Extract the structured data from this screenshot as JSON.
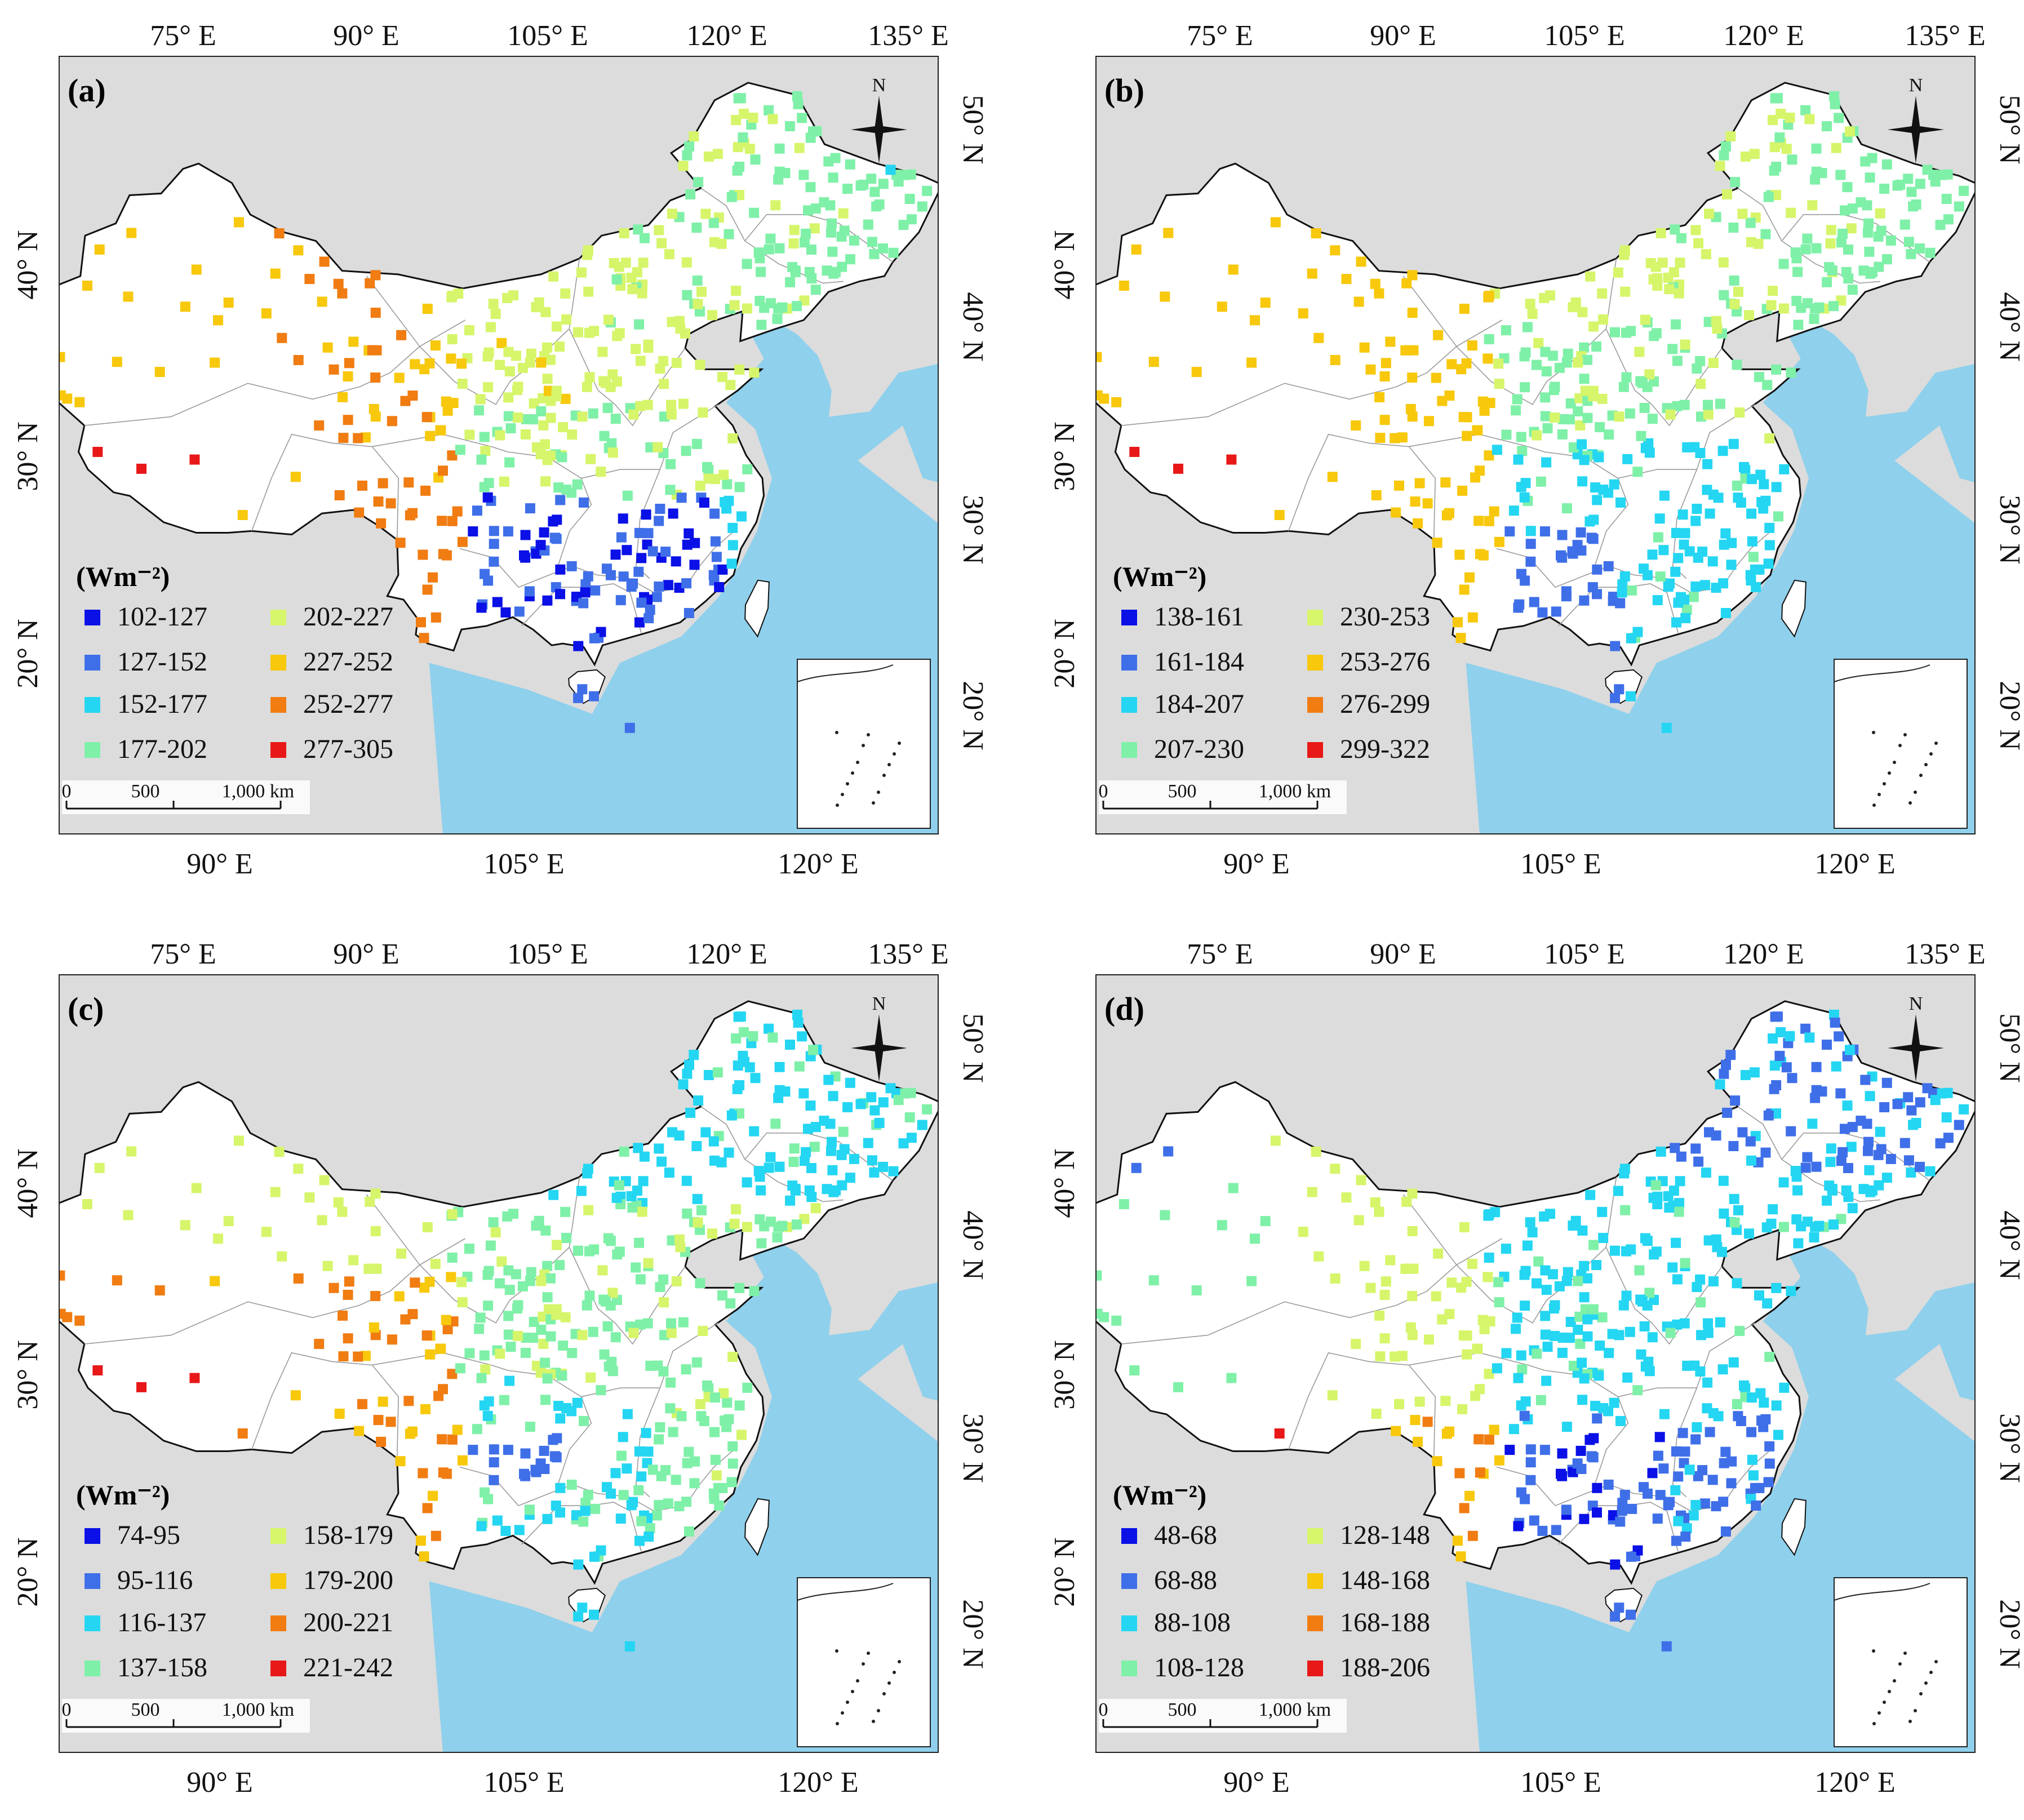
{
  "unit_label": "(Wm⁻²)",
  "top_axis_labels": [
    "75° E",
    "90° E",
    "105° E",
    "120° E",
    "135° E"
  ],
  "bottom_axis_labels": [
    "90° E",
    "105° E",
    "120° E"
  ],
  "left_axis_labels": [
    "40° N",
    "30° N",
    "20° N"
  ],
  "right_axis_labels": [
    "50° N",
    "40° N",
    "30° N",
    "20° N"
  ],
  "scale_bar": {
    "zero": "0",
    "mid": "500",
    "end": "1,000 km"
  },
  "north_arrow": "N",
  "class_colors": [
    "#0a10e6",
    "#3f6fe8",
    "#24d6f2",
    "#7ff0a8",
    "#d6f56a",
    "#f7c80c",
    "#f07c12",
    "#e81818"
  ],
  "map_colors": {
    "land": "#ffffff",
    "neighbor": "#dcdcdc",
    "sea": "#8fd0ec",
    "border": "#111111",
    "province": "#9a9a9a"
  },
  "panels": [
    {
      "id": "a",
      "label": "(a)",
      "classes": [
        "102-127",
        "127-152",
        "152-177",
        "177-202",
        "202-227",
        "227-252",
        "252-277",
        "277-305"
      ]
    },
    {
      "id": "b",
      "label": "(b)",
      "classes": [
        "138-161",
        "161-184",
        "184-207",
        "207-230",
        "230-253",
        "253-276",
        "276-299",
        "299-322"
      ]
    },
    {
      "id": "c",
      "label": "(c)",
      "classes": [
        "74-95",
        "95-116",
        "116-137",
        "137-158",
        "158-179",
        "179-200",
        "200-221",
        "221-242"
      ]
    },
    {
      "id": "d",
      "label": "(d)",
      "classes": [
        "48-68",
        "68-88",
        "88-108",
        "108-128",
        "128-148",
        "148-168",
        "168-188",
        "188-206"
      ]
    }
  ]
}
